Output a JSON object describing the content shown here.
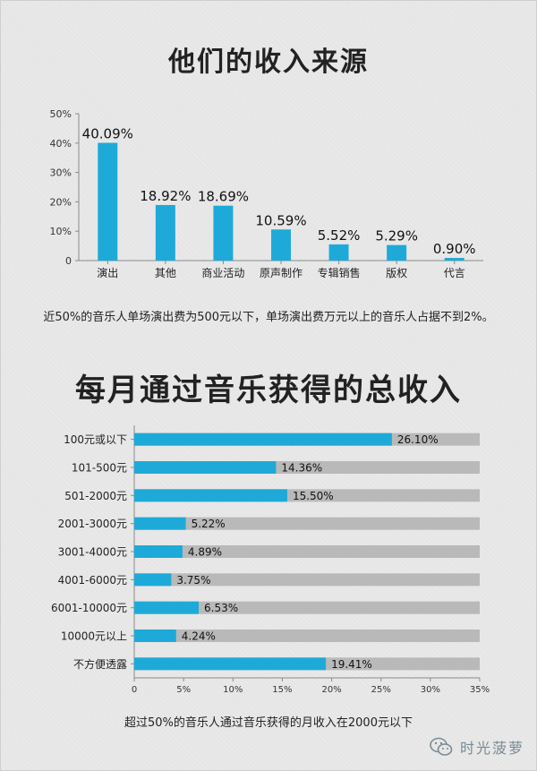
{
  "title1": "他们的收入来源",
  "caption1": "近50%的音乐人单场演出费为500元以下，单场演出费万元以上的音乐人占据不到2%。",
  "title2": "每月通过音乐获得的总收入",
  "caption2": "超过50%的音乐人通过音乐获得的月收入在2000元以下",
  "watermark": "时光菠萝",
  "colors": {
    "bar": "#1eaad8",
    "track": "#b9b9b9",
    "axis": "#8a8a8a"
  },
  "chart_data": [
    {
      "type": "bar",
      "title": "他们的收入来源",
      "categories": [
        "演出",
        "其他",
        "商业活动",
        "原声制作",
        "专辑销售",
        "版权",
        "代言"
      ],
      "values": [
        40.09,
        18.92,
        18.69,
        10.59,
        5.52,
        5.29,
        0.9
      ],
      "value_labels": [
        "40.09%",
        "18.92%",
        "18.69%",
        "10.59%",
        "5.52%",
        "5.29%",
        "0.90%"
      ],
      "yticks": [
        "0",
        "10%",
        "20%",
        "30%",
        "40%",
        "50%"
      ],
      "ylim": [
        0,
        50
      ],
      "grid": false
    },
    {
      "type": "bar",
      "orientation": "horizontal",
      "title": "每月通过音乐获得的总收入",
      "categories": [
        "100元或以下",
        "101-500元",
        "501-2000元",
        "2001-3000元",
        "3001-4000元",
        "4001-6000元",
        "6001-10000元",
        "10000元以上",
        "不方便透露"
      ],
      "values": [
        26.1,
        14.36,
        15.5,
        5.22,
        4.89,
        3.75,
        6.53,
        4.24,
        19.41
      ],
      "value_labels": [
        "26.10%",
        "14.36%",
        "15.50%",
        "5.22%",
        "4.89%",
        "3.75%",
        "6.53%",
        "4.24%",
        "19.41%"
      ],
      "xticks": [
        "0",
        "5%",
        "10%",
        "15%",
        "20%",
        "25%",
        "30%",
        "35%"
      ],
      "xlim": [
        0,
        35
      ],
      "grid": false
    }
  ]
}
